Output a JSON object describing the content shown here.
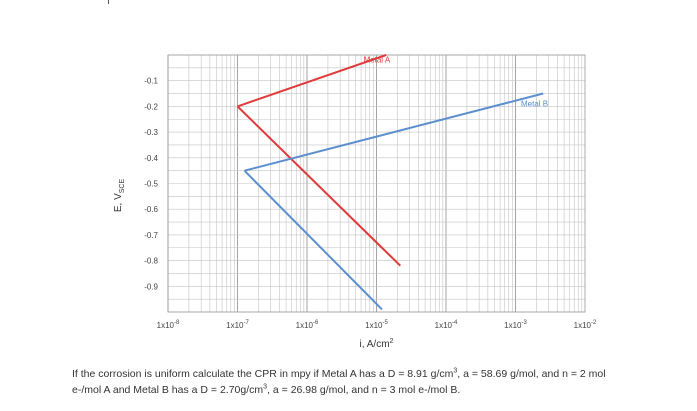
{
  "chart_data": {
    "type": "line",
    "title": "",
    "xlabel": "i, A/cm",
    "xlabel_sup": "2",
    "ylabel": "E, V",
    "ylabel_sub": "SCE",
    "xscale": "log",
    "xlim": [
      1e-08,
      0.01
    ],
    "ylim": [
      -1.0,
      0.0
    ],
    "grid": true,
    "y_ticks": [
      -0.1,
      -0.2,
      -0.3,
      -0.4,
      -0.5,
      -0.6,
      -0.7,
      -0.8,
      -0.9
    ],
    "y_tick_labels": [
      "-0.1",
      "-0.2",
      "-0.3",
      "-0.4",
      "-0.5",
      "-0.6",
      "-0.7",
      "-0.8",
      "-0.9"
    ],
    "x_ticks": [
      {
        "value": 1e-08,
        "base": "1x10",
        "exp": "-8"
      },
      {
        "value": 1e-07,
        "base": "1x10",
        "exp": "-7"
      },
      {
        "value": 1e-06,
        "base": "1x10",
        "exp": "-6"
      },
      {
        "value": 1e-05,
        "base": "1x10",
        "exp": "-5"
      },
      {
        "value": 0.0001,
        "base": "1x10",
        "exp": "-4"
      },
      {
        "value": 0.001,
        "base": "1x10",
        "exp": "-3"
      },
      {
        "value": 0.01,
        "base": "1x10",
        "exp": "-2"
      }
    ],
    "series": [
      {
        "name": "Metal A",
        "color": "#e03a3a",
        "points": [
          [
            1e-07,
            -0.2
          ],
          [
            1.38e-05,
            0.0
          ]
        ],
        "points2": [
          [
            1e-07,
            -0.2
          ],
          [
            2.2e-05,
            -0.82
          ]
        ],
        "label_at": [
          6.5e-06,
          -0.03
        ]
      },
      {
        "name": "Metal B",
        "color": "#5b8fd0",
        "points": [
          [
            1.26e-07,
            -0.45
          ],
          [
            0.0025,
            -0.15
          ]
        ],
        "points2": [
          [
            1.26e-07,
            -0.45
          ],
          [
            1.2e-05,
            -0.99
          ]
        ],
        "label_at": [
          0.0012,
          -0.2
        ]
      }
    ]
  },
  "question": {
    "part1": "If the corrosion is uniform calculate the CPR in mpy if Metal A has a D = 8.91 g/cm",
    "sup1": "3",
    "part2": ", a = 58.69 g/mol, and n = 2 mol e-/mol A and Metal B has a D = 2.70g/cm",
    "sup2": "3",
    "part3": ", a = 26.98 g/mol, and n = 3 mol e-/mol B."
  }
}
